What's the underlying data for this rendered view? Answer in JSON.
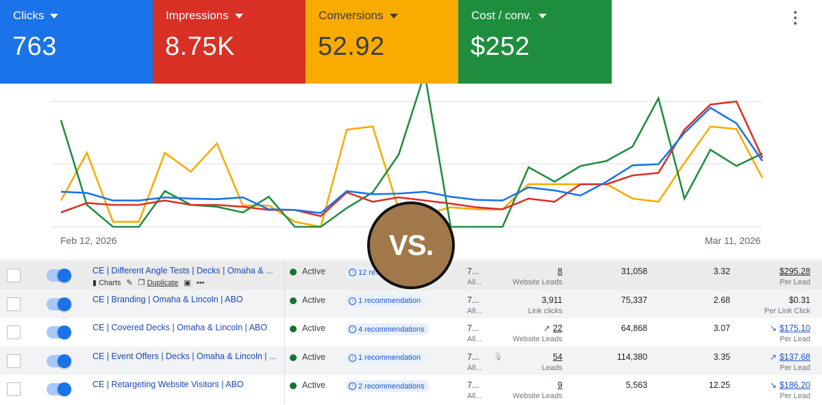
{
  "metrics": [
    {
      "label": "Clicks",
      "value": "763",
      "color": "#1a73e8"
    },
    {
      "label": "Impressions",
      "value": "8.75K",
      "color": "#d93025"
    },
    {
      "label": "Conversions",
      "value": "52.92",
      "color": "#f9ab00"
    },
    {
      "label": "Cost / conv.",
      "value": "$252",
      "color": "#1e8e3e"
    }
  ],
  "chart_data": {
    "type": "line",
    "x_start_label": "Feb 12, 2026",
    "x_end_label": "Mar 11, 2026",
    "grid": "horizontal",
    "series": [
      {
        "name": "Clicks",
        "color": "#1a73e8",
        "values": [
          56,
          54,
          42,
          42,
          47,
          45,
          44,
          47,
          28,
          27,
          22,
          57,
          52,
          53,
          56,
          48,
          43,
          42,
          63,
          58,
          50,
          72,
          98,
          100,
          150,
          190,
          165,
          105
        ]
      },
      {
        "name": "Impressions",
        "color": "#d93025",
        "values": [
          23,
          38,
          35,
          35,
          42,
          35,
          35,
          32,
          27,
          27,
          17,
          55,
          40,
          47,
          42,
          37,
          31,
          28,
          45,
          40,
          68,
          68,
          82,
          86,
          155,
          195,
          200,
          110
        ]
      },
      {
        "name": "Conversions",
        "color": "#f9ab00",
        "values": [
          42,
          118,
          8,
          8,
          118,
          88,
          133,
          34,
          34,
          8,
          0,
          155,
          160,
          28,
          20,
          31,
          28,
          28,
          68,
          68,
          68,
          68,
          45,
          40,
          102,
          160,
          156,
          78
        ]
      },
      {
        "name": "Cost / conv.",
        "color": "#1e8e3e",
        "values": [
          170,
          35,
          0,
          0,
          57,
          35,
          32,
          23,
          48,
          0,
          0,
          30,
          55,
          115,
          245,
          0,
          0,
          0,
          95,
          72,
          97,
          105,
          128,
          205,
          45,
          123,
          97,
          117
        ]
      }
    ]
  },
  "badge": {
    "text": "VS."
  },
  "table": {
    "rows": [
      {
        "name": "CE | Different Angle Tests | Decks | Omaha & ...",
        "actions": [
          "Charts",
          "Duplicate"
        ],
        "status": "Active",
        "rec": "12 re...",
        "budget": "7...",
        "budget_sub": "All...",
        "results": "8",
        "results_sub": "Website Leads",
        "reach": "31,058",
        "freq": "3.32",
        "cost": "$295.28",
        "cost_sub": "Per Lead",
        "results_trend": "",
        "cost_trend": ""
      },
      {
        "name": "CE | Branding | Omaha & Lincoln | ABO",
        "status": "Active",
        "rec": "1 recommendation",
        "budget": "7...",
        "budget_sub": "All...",
        "results": "3,911",
        "results_sub": "Link clicks",
        "reach": "75,337",
        "freq": "2.68",
        "cost": "$0.31",
        "cost_sub": "Per Link Click",
        "results_trend": "",
        "cost_trend": ""
      },
      {
        "name": "CE | Covered Decks | Omaha & Lincoln | ABO",
        "status": "Active",
        "rec": "4 recommendations",
        "budget": "7...",
        "budget_sub": "All...",
        "results": "22",
        "results_sub": "Website Leads",
        "reach": "64,868",
        "freq": "3.07",
        "cost": "$175.10",
        "cost_sub": "Per Lead",
        "results_trend": "↗",
        "cost_trend": "↘"
      },
      {
        "name": "CE | Event Offers | Decks | Omaha & Lincoln | ...",
        "status": "Active",
        "rec": "1 recommendation",
        "budget": "7...",
        "budget_sub": "All...",
        "results": "54",
        "results_sub": "Leads",
        "reach": "114,380",
        "freq": "3.35",
        "cost": "$137.68",
        "cost_sub": "Per Lead",
        "results_trend": "",
        "cost_trend": "↗"
      },
      {
        "name": "CE | Retargeting Website Visitors | ABO",
        "status": "Active",
        "rec": "2 recommendations",
        "budget": "7...",
        "budget_sub": "All...",
        "results": "9",
        "results_sub": "Website Leads",
        "reach": "5,563",
        "freq": "12.25",
        "cost": "$186.20",
        "cost_sub": "Per Lead",
        "results_trend": "",
        "cost_trend": "↘"
      }
    ]
  }
}
